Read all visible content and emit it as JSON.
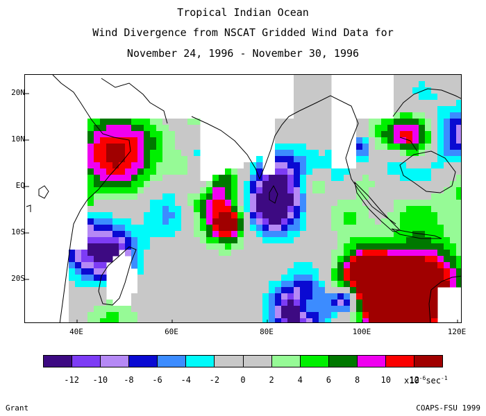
{
  "header": {
    "line1": "Tropical Indian Ocean",
    "line2": "Wind Divergence from NSCAT Gridded Wind Data for",
    "line3": "November 24, 1996 - November 30, 1996"
  },
  "axes": {
    "lat_ticks": [
      "20N",
      "10N",
      "EQ",
      "10S",
      "20S"
    ],
    "lon_ticks": [
      "40E",
      "60E",
      "80E",
      "100E",
      "120E"
    ]
  },
  "colorbar": {
    "colors": [
      "#3d0a82",
      "#7d3cf5",
      "#b589f5",
      "#0a0ad2",
      "#3c8cff",
      "#00fafa",
      "#c8c8c8",
      "#c8c8c8",
      "#96fa96",
      "#00f000",
      "#007800",
      "#f000f0",
      "#fa0000",
      "#a00000"
    ],
    "labels": [
      "-12",
      "-10",
      "-8",
      "-6",
      "-4",
      "-2",
      "0",
      "2",
      "4",
      "6",
      "8",
      "10",
      "12"
    ],
    "unit_base": "x10",
    "unit_exp": "-6",
    "unit_sec": "sec",
    "unit_sec_exp": "-1"
  },
  "credits": {
    "left": "Grant",
    "right": "COAPS-FSU 1999"
  }
}
